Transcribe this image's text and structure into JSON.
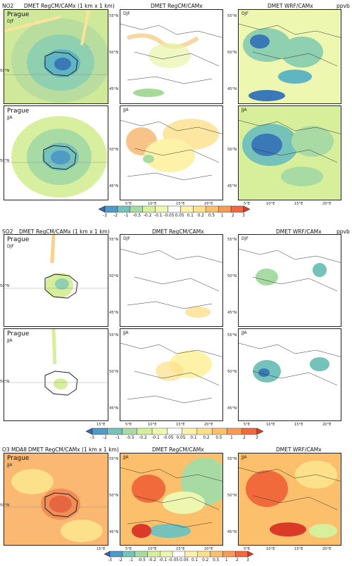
{
  "sections": [
    {
      "id": "no2",
      "label": "NO2",
      "unit": "ppvb",
      "titles": [
        "DMET RegCM/CAMx (1 km x 1 km)",
        "DMET RegCM/CAMx",
        "DMET WRF/CAMx"
      ],
      "rows": [
        {
          "season": "DJF",
          "city": "Prague",
          "season_labels": [
            "DJF",
            "DJF",
            "DJF"
          ]
        },
        {
          "season": "JJA",
          "city": "Prague",
          "season_labels": [
            "JJA",
            "JJA",
            "JJA"
          ]
        }
      ]
    },
    {
      "id": "so2",
      "label": "SO2",
      "unit": "ppvb",
      "titles": [
        "DMET RegCM/CAMx (1 km x 1 km)",
        "DMET RegCM/CAMx",
        "DMET WRF/CAMx"
      ],
      "rows": [
        {
          "season": "DJF",
          "city": "Prague",
          "season_labels": [
            "DJF",
            "DJF",
            "DJF"
          ]
        },
        {
          "season": "JJA",
          "city": "Prague",
          "season_labels": [
            "JJA",
            "JJA",
            "JJA"
          ]
        }
      ]
    },
    {
      "id": "o3",
      "label": "O3 MDA8",
      "unit": "",
      "titles": [
        "DMET RegCM/CAMx (1 km x 1 km)",
        "DMET RegCM/CAMx",
        "DMET WRF/CAMx"
      ],
      "rows": [
        {
          "season": "JJA",
          "city": "Prague",
          "season_labels": [
            "JJA",
            "JJA",
            "JJA"
          ]
        }
      ]
    }
  ],
  "axes": {
    "city_lat": "50°N",
    "city_lon": "15°E",
    "region_lats": [
      "55°N",
      "50°N",
      "45°N"
    ],
    "region_lons": [
      "5°E",
      "10°E",
      "15°E",
      "20°E"
    ]
  },
  "colorbar": {
    "ticks": [
      "-3",
      "-2",
      "-1",
      "-0.5",
      "-0.2",
      "-0.1",
      "-0.05",
      "0.05",
      "0.1",
      "0.2",
      "0.5",
      "1",
      "2",
      "3"
    ],
    "colors": [
      "#3b67b2",
      "#4f9bc8",
      "#74c2ba",
      "#a8dba4",
      "#d7ee9a",
      "#eef7b0",
      "#ffffff",
      "#fdf2a8",
      "#fde08a",
      "#fcc06c",
      "#f99b55",
      "#f06a3c",
      "#dc3a28"
    ]
  },
  "chart_data": {
    "type": "heatmap",
    "description_fields": [
      "NO2 DJF",
      "NO2 JJA",
      "SO2 DJF",
      "SO2 JJA",
      "O3 MDA8 JJA"
    ],
    "colorbar_boundaries": [
      -3,
      -2,
      -1,
      -0.5,
      -0.2,
      -0.1,
      -0.05,
      0.05,
      0.1,
      0.2,
      0.5,
      1,
      2,
      3
    ],
    "unit": "ppvb"
  }
}
